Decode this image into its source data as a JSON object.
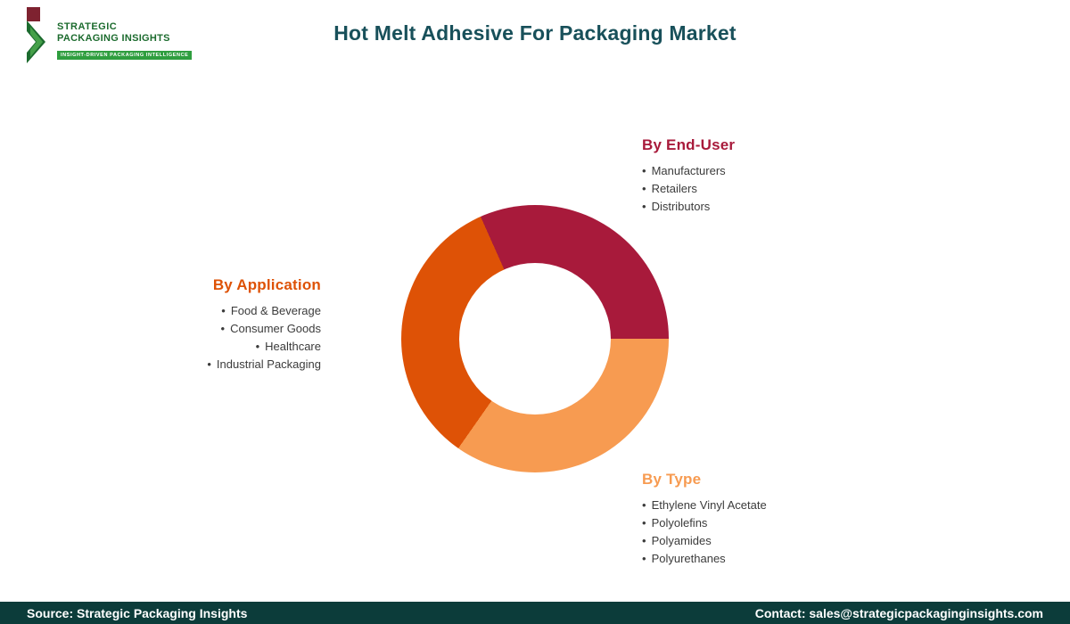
{
  "header": {
    "title": "Hot Melt Adhesive For Packaging Market",
    "logo": {
      "line1": "STRATEGIC",
      "line2": "PACKAGING INSIGHTS",
      "tagline": "INSIGHT-DRIVEN PACKAGING INTELLIGENCE"
    }
  },
  "colors": {
    "title": "#18505a",
    "footer_bg": "#0c3c3a",
    "end_user": "#a81a3b",
    "type": "#f79b51",
    "application": "#de5206"
  },
  "chart_data": {
    "type": "pie",
    "donut": true,
    "title": "Hot Melt Adhesive For Packaging Market",
    "legend_position": "around",
    "start_angle_deg": -24,
    "segments": [
      {
        "label": "By End-User",
        "sweep_deg": 114,
        "share_pct": 31.7,
        "color": "#a81a3b",
        "items": [
          "Manufacturers",
          "Retailers",
          "Distributors"
        ]
      },
      {
        "label": "By Type",
        "sweep_deg": 125,
        "share_pct": 34.7,
        "color": "#f79b51",
        "items": [
          "Ethylene Vinyl Acetate",
          "Polyolefins",
          "Polyamides",
          "Polyurethanes"
        ]
      },
      {
        "label": "By Application",
        "sweep_deg": 121,
        "share_pct": 33.6,
        "color": "#de5206",
        "items": [
          "Food & Beverage",
          "Consumer Goods",
          "Healthcare",
          "Industrial Packaging"
        ]
      }
    ]
  },
  "footer": {
    "source": "Source: Strategic Packaging Insights",
    "contact": "Contact: sales@strategicpackaginginsights.com"
  }
}
